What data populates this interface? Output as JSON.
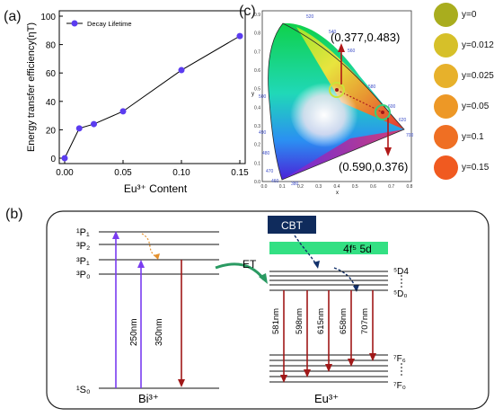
{
  "panel_a": {
    "label": "(a)",
    "chart_data": {
      "type": "line",
      "xlabel": "Eu³⁺ Content",
      "ylabel": "Energy transfer efficiency(ηT)",
      "xlim": [
        0.0,
        0.15
      ],
      "ylim": [
        0,
        100
      ],
      "xticks": [
        "0.00",
        "0.05",
        "0.10",
        "0.15"
      ],
      "yticks": [
        "0",
        "20",
        "40",
        "60",
        "80",
        "100"
      ],
      "series": [
        {
          "name": "Decay Lifetime",
          "color": "#5b3cf0",
          "x": [
            0.0,
            0.0125,
            0.025,
            0.05,
            0.1,
            0.15
          ],
          "y": [
            0,
            21,
            24,
            33,
            62,
            86
          ]
        }
      ],
      "legend": "top-left",
      "grid": false
    }
  },
  "panel_b": {
    "label": "(b)",
    "bi_levels": [
      "¹P₁",
      "³P₂",
      "³P₁",
      "³P₀",
      "¹S₀"
    ],
    "bi_label": "Bi³⁺",
    "bi_excitation": [
      "250nm",
      "350nm"
    ],
    "et_label": "ET",
    "cbt_label": "CBT",
    "band_label": "4f⁵ 5d",
    "eu_upper_levels": [
      "⁵D4",
      "⁵D₀"
    ],
    "eu_lower_levels": [
      "⁷F₆",
      "⁷F₀"
    ],
    "eu_label": "Eu³⁺",
    "emissions": [
      "581nm",
      "598nm",
      "615nm",
      "658nm",
      "707nm"
    ],
    "colors": {
      "excite": "#7a3cf0",
      "emit": "#a01818",
      "cbt_bg": "#0f2b5c",
      "band_bg": "#33e083",
      "et_arrow": "#2a9a62"
    }
  },
  "panel_c": {
    "label": "(c)",
    "point1": "(0.377,0.483)",
    "point2": "(0.590,0.376)",
    "x_axis": "x",
    "y_axis": "y",
    "x_ticks": [
      "0.0",
      "0.1",
      "0.2",
      "0.3",
      "0.4",
      "0.5",
      "0.6",
      "0.7",
      "0.8"
    ],
    "y_ticks": [
      "0.0",
      "0.1",
      "0.2",
      "0.3",
      "0.4",
      "0.5",
      "0.6",
      "0.7",
      "0.8",
      "0.9"
    ],
    "wavelengths": [
      "520",
      "540",
      "560",
      "580",
      "600",
      "620",
      "700",
      "500",
      "490",
      "480",
      "470",
      "460",
      "380"
    ],
    "swatches": [
      {
        "label": "y=0",
        "color": "#a9ad1e"
      },
      {
        "label": "y=0.0125",
        "color": "#d6c029"
      },
      {
        "label": "y=0.025",
        "color": "#e7b12b"
      },
      {
        "label": "y=0.05",
        "color": "#ed9826"
      },
      {
        "label": "y=0.1",
        "color": "#ef6f23"
      },
      {
        "label": "y=0.15",
        "color": "#f05a20"
      }
    ]
  }
}
